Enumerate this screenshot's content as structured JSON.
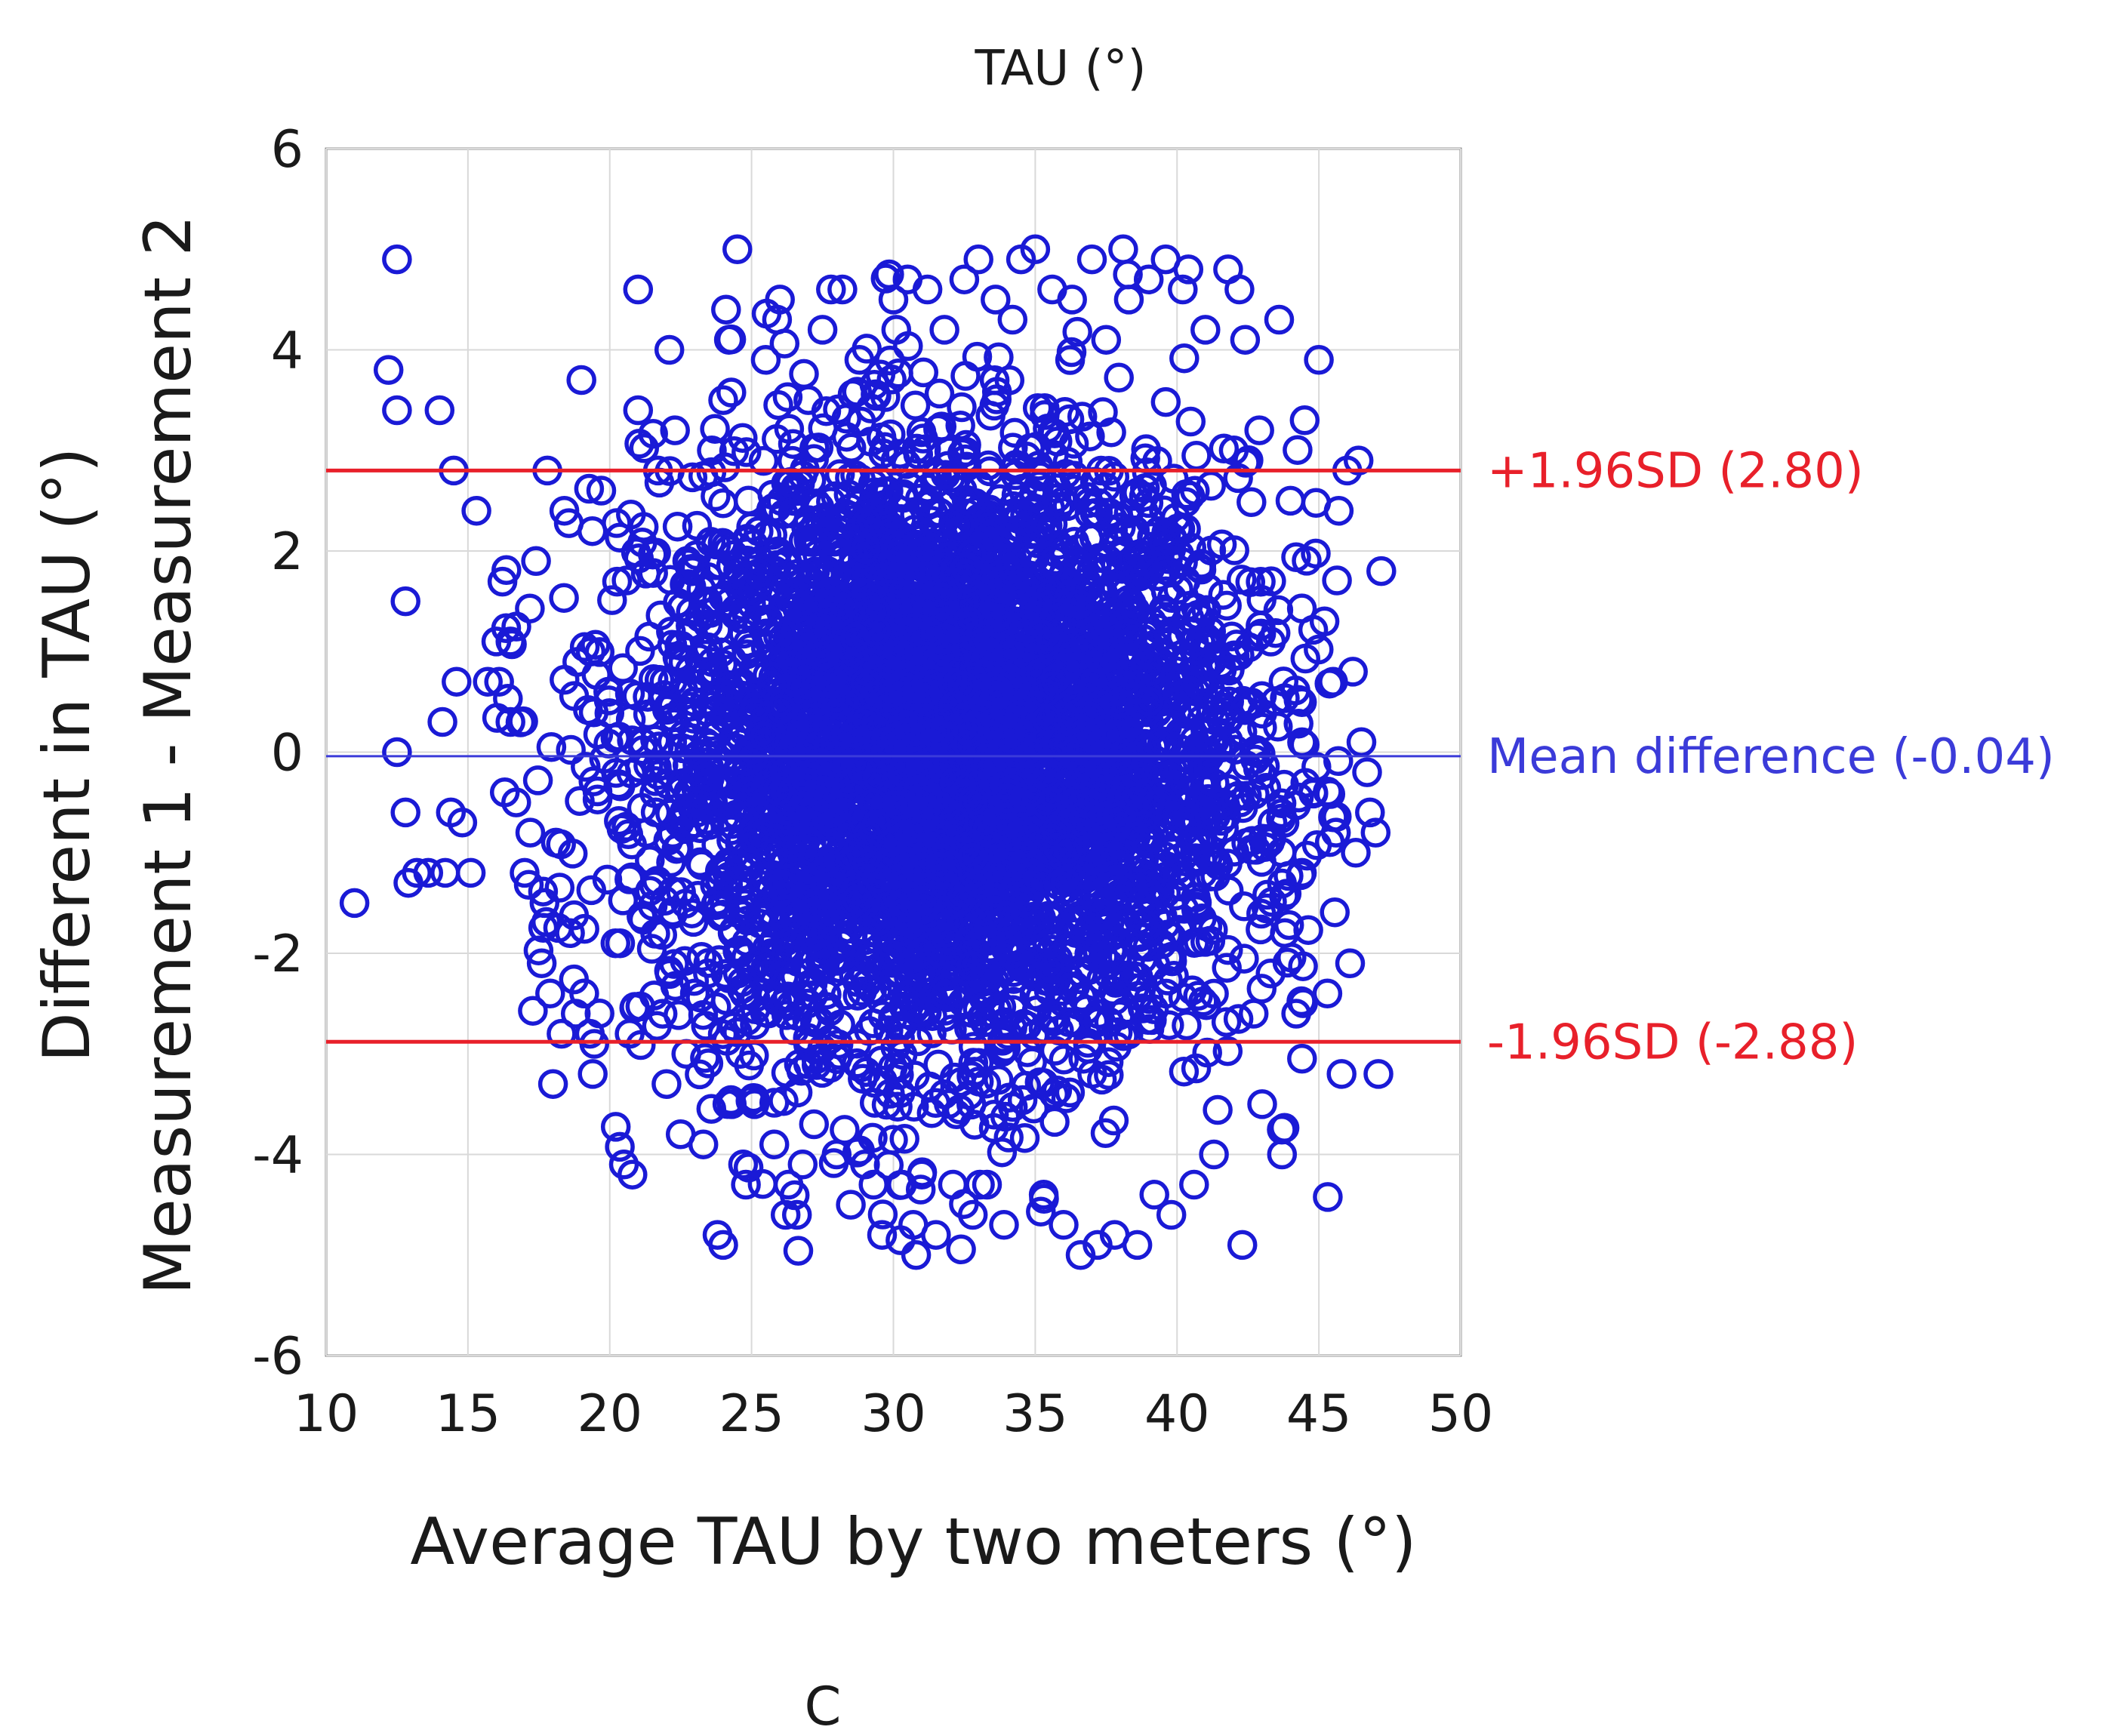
{
  "chart_data": {
    "type": "scatter",
    "title": "TAU (°)",
    "xlabel": "Average TAU by two meters (°)",
    "ylabel_line1": "Different in TAU (°)",
    "ylabel_line2": "Measurement 1 - Measurement 2",
    "xlim": [
      10,
      50
    ],
    "ylim": [
      -6,
      6
    ],
    "x_ticks": [
      10,
      15,
      20,
      25,
      30,
      35,
      40,
      45,
      50
    ],
    "y_ticks": [
      -6,
      -4,
      -2,
      0,
      2,
      4,
      6
    ],
    "grid": true,
    "marker": "open-circle",
    "colors": {
      "points": "#1a1ad6",
      "limits": "#e8202a",
      "mean": "#3b3bd9"
    },
    "reference_lines": [
      {
        "name": "upper_limit",
        "label": "+1.96SD (2.80)",
        "y": 2.8,
        "color": "#e8202a"
      },
      {
        "name": "mean",
        "label": "Mean difference (-0.04)",
        "y": -0.04,
        "color": "#3b3bd9"
      },
      {
        "name": "lower_limit",
        "label": "-1.96SD (-2.88)",
        "y": -2.88,
        "color": "#e8202a"
      }
    ],
    "points": [
      [
        11.0,
        -1.5
      ],
      [
        12.2,
        3.8
      ],
      [
        12.5,
        4.9
      ],
      [
        12.5,
        3.4
      ],
      [
        12.5,
        0.0
      ],
      [
        12.8,
        1.5
      ],
      [
        12.8,
        -0.6
      ],
      [
        12.9,
        -1.3
      ],
      [
        13.2,
        -1.2
      ],
      [
        13.6,
        -1.2
      ],
      [
        14.0,
        3.4
      ],
      [
        14.1,
        0.3
      ],
      [
        14.2,
        -1.2
      ],
      [
        14.4,
        -0.6
      ],
      [
        14.5,
        2.8
      ],
      [
        14.6,
        0.7
      ],
      [
        14.8,
        -0.7
      ],
      [
        15.1,
        -1.2
      ],
      [
        15.3,
        2.4
      ],
      [
        15.7,
        0.7
      ],
      [
        16.0,
        1.1
      ],
      [
        16.1,
        0.7
      ],
      [
        16.3,
        -0.4
      ],
      [
        16.5,
        1.1
      ],
      [
        16.5,
        0.3
      ],
      [
        16.7,
        -0.5
      ],
      [
        17.0,
        -1.2
      ],
      [
        17.2,
        -0.8
      ],
      [
        17.4,
        1.9
      ],
      [
        17.6,
        -2.1
      ],
      [
        17.7,
        -1.5
      ],
      [
        17.8,
        2.8
      ],
      [
        17.9,
        -2.4
      ],
      [
        18.0,
        -3.3
      ],
      [
        18.1,
        -0.9
      ],
      [
        18.3,
        -2.8
      ],
      [
        18.4,
        2.4
      ],
      [
        18.6,
        -1.8
      ],
      [
        18.8,
        -2.6
      ],
      [
        19.0,
        3.7
      ],
      [
        19.1,
        -2.4
      ],
      [
        19.3,
        -2.8
      ],
      [
        19.4,
        -3.2
      ],
      [
        19.7,
        2.6
      ],
      [
        20.2,
        -1.9
      ],
      [
        20.5,
        -4.1
      ],
      [
        20.7,
        -2.8
      ],
      [
        20.8,
        -4.2
      ],
      [
        21.0,
        4.6
      ],
      [
        21.0,
        3.4
      ],
      [
        21.7,
        2.8
      ],
      [
        22.0,
        -3.3
      ],
      [
        22.1,
        4.0
      ],
      [
        22.3,
        3.2
      ],
      [
        22.5,
        -3.8
      ],
      [
        22.7,
        -3.0
      ],
      [
        23.0,
        -2.4
      ],
      [
        23.3,
        -3.9
      ],
      [
        23.6,
        3.0
      ],
      [
        23.8,
        -4.8
      ],
      [
        24.0,
        -4.9
      ],
      [
        24.0,
        3.5
      ],
      [
        24.1,
        4.4
      ],
      [
        24.2,
        4.1
      ],
      [
        24.3,
        -3.5
      ],
      [
        24.5,
        5.0
      ],
      [
        24.6,
        -3.0
      ],
      [
        24.7,
        -4.1
      ],
      [
        24.8,
        -4.3
      ],
      [
        25.1,
        -3.5
      ],
      [
        25.5,
        3.9
      ],
      [
        25.8,
        -3.9
      ],
      [
        25.9,
        4.3
      ],
      [
        26.0,
        4.5
      ],
      [
        26.2,
        -4.6
      ],
      [
        26.3,
        -4.3
      ],
      [
        26.6,
        -4.6
      ],
      [
        26.8,
        -4.1
      ],
      [
        27.0,
        3.5
      ],
      [
        27.2,
        -3.7
      ],
      [
        27.5,
        4.2
      ],
      [
        27.8,
        4.6
      ],
      [
        28.0,
        -4.0
      ],
      [
        28.2,
        4.6
      ],
      [
        28.5,
        -4.5
      ],
      [
        28.8,
        3.9
      ],
      [
        29.0,
        -4.1
      ],
      [
        29.3,
        -4.3
      ],
      [
        29.6,
        -4.8
      ],
      [
        30.0,
        4.5
      ],
      [
        30.1,
        4.2
      ],
      [
        30.3,
        -4.3
      ],
      [
        30.5,
        4.7
      ],
      [
        30.7,
        -4.7
      ],
      [
        30.8,
        -5.0
      ],
      [
        31.0,
        -4.2
      ],
      [
        31.2,
        4.6
      ],
      [
        31.5,
        -4.8
      ],
      [
        31.8,
        4.2
      ],
      [
        32.1,
        -4.3
      ],
      [
        32.5,
        4.7
      ],
      [
        32.8,
        -4.6
      ],
      [
        33.0,
        4.9
      ],
      [
        33.3,
        -4.3
      ],
      [
        33.6,
        4.5
      ],
      [
        33.9,
        -4.7
      ],
      [
        34.2,
        4.3
      ],
      [
        34.5,
        4.9
      ],
      [
        35.0,
        5.0
      ],
      [
        35.3,
        -4.4
      ],
      [
        35.6,
        4.6
      ],
      [
        36.0,
        -4.7
      ],
      [
        36.3,
        4.5
      ],
      [
        36.6,
        -5.0
      ],
      [
        37.0,
        4.9
      ],
      [
        37.2,
        -4.9
      ],
      [
        37.5,
        4.1
      ],
      [
        37.8,
        -4.8
      ],
      [
        38.1,
        5.0
      ],
      [
        38.3,
        4.5
      ],
      [
        38.6,
        -4.9
      ],
      [
        39.0,
        4.7
      ],
      [
        39.2,
        -4.4
      ],
      [
        39.6,
        4.9
      ],
      [
        39.8,
        -4.6
      ],
      [
        40.2,
        4.6
      ],
      [
        40.4,
        4.8
      ],
      [
        40.6,
        -4.3
      ],
      [
        41.0,
        4.2
      ],
      [
        41.3,
        -4.0
      ],
      [
        41.8,
        4.8
      ],
      [
        42.0,
        3.0
      ],
      [
        42.2,
        4.6
      ],
      [
        42.3,
        -4.9
      ],
      [
        42.4,
        4.1
      ],
      [
        42.7,
        -2.6
      ],
      [
        42.9,
        3.2
      ],
      [
        43.0,
        -3.5
      ],
      [
        43.3,
        -2.2
      ],
      [
        43.6,
        4.3
      ],
      [
        43.7,
        -4.0
      ],
      [
        43.8,
        -1.8
      ],
      [
        44.0,
        2.5
      ],
      [
        44.2,
        -2.6
      ],
      [
        44.4,
        -1.2
      ],
      [
        44.5,
        3.3
      ],
      [
        44.8,
        -0.4
      ],
      [
        45.0,
        3.9
      ],
      [
        45.2,
        1.3
      ],
      [
        45.3,
        -2.4
      ],
      [
        45.5,
        0.7
      ],
      [
        45.6,
        -0.8
      ],
      [
        45.7,
        2.4
      ],
      [
        45.8,
        -3.2
      ],
      [
        46.0,
        2.8
      ],
      [
        46.1,
        -2.1
      ],
      [
        46.2,
        0.8
      ],
      [
        46.3,
        -1.0
      ],
      [
        46.4,
        2.9
      ],
      [
        46.5,
        0.1
      ],
      [
        46.7,
        -0.2
      ],
      [
        46.8,
        -0.6
      ],
      [
        47.0,
        -0.8
      ],
      [
        47.1,
        -3.2
      ],
      [
        47.2,
        1.8
      ]
    ],
    "dense_cloud": {
      "x_center": 32.0,
      "y_center": -0.04,
      "sd_x": 5.2,
      "sd_y": 1.45,
      "count": 5200
    }
  },
  "panel_label": "C"
}
